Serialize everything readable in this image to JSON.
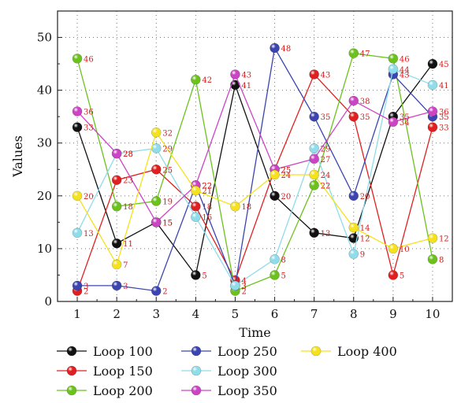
{
  "chart_data": {
    "type": "line",
    "xlabel": "Time",
    "ylabel": "Values",
    "x": [
      1,
      2,
      3,
      4,
      5,
      6,
      7,
      8,
      9,
      10
    ],
    "xlim": [
      0.5,
      10.5
    ],
    "ylim": [
      0,
      55
    ],
    "xticks": [
      "1",
      "2",
      "3",
      "4",
      "5",
      "6",
      "7",
      "8",
      "9",
      "10"
    ],
    "yticks": [
      "0",
      "10",
      "20",
      "30",
      "40",
      "50"
    ],
    "grid": true,
    "legend_position": "bottom",
    "data_label_color": "#d42020",
    "series": [
      {
        "name": "Loop 100",
        "color": "#111111",
        "values": [
          33,
          11,
          15,
          5,
          41,
          20,
          13,
          12,
          35,
          45
        ]
      },
      {
        "name": "Loop 150",
        "color": "#e02020",
        "values": [
          2,
          23,
          25,
          18,
          4,
          25,
          43,
          35,
          5,
          33
        ]
      },
      {
        "name": "Loop 200",
        "color": "#6cc21c",
        "values": [
          46,
          18,
          19,
          42,
          2,
          5,
          22,
          47,
          46,
          8
        ]
      },
      {
        "name": "Loop 250",
        "color": "#3b44b0",
        "values": [
          3,
          3,
          2,
          22,
          3,
          48,
          35,
          20,
          43,
          35
        ]
      },
      {
        "name": "Loop 300",
        "color": "#8fdcea",
        "values": [
          13,
          28,
          29,
          16,
          3,
          8,
          29,
          9,
          44,
          41
        ]
      },
      {
        "name": "Loop 350",
        "color": "#cc44c4",
        "values": [
          36,
          28,
          15,
          22,
          43,
          25,
          27,
          38,
          34,
          36
        ]
      },
      {
        "name": "Loop 400",
        "color": "#f5e21c",
        "values": [
          20,
          7,
          32,
          21,
          18,
          24,
          24,
          14,
          10,
          12
        ]
      }
    ]
  }
}
